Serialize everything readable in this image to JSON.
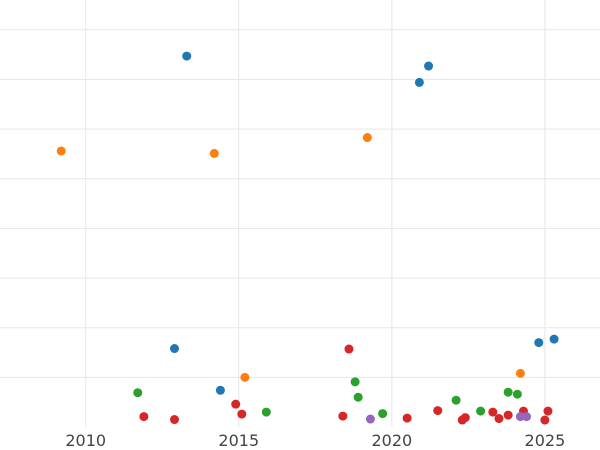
{
  "chart_data": {
    "type": "scatter",
    "title": "",
    "xlabel": "",
    "ylabel": "",
    "x_axis": "year",
    "xlim": [
      2007.2,
      2026.8
    ],
    "ylim": [
      0,
      8.6
    ],
    "x_ticks": [
      2010,
      2015,
      2020,
      2025
    ],
    "x_tick_labels": [
      "2010",
      "2015",
      "2020",
      "2025"
    ],
    "y_gridlines": [
      1,
      2,
      3,
      4,
      5,
      6,
      7,
      8
    ],
    "grid": true,
    "colors": {
      "blue": "#1f77b4",
      "orange": "#ff7f0e",
      "green": "#2ca02c",
      "red": "#d62728",
      "purple": "#9467bd"
    },
    "series": [
      {
        "color": "#1f77b4",
        "points": [
          {
            "x": 2013.3,
            "y": 7.47
          },
          {
            "x": 2021.2,
            "y": 7.27
          },
          {
            "x": 2020.9,
            "y": 6.94
          },
          {
            "x": 2012.9,
            "y": 1.58
          },
          {
            "x": 2024.8,
            "y": 1.7
          },
          {
            "x": 2025.3,
            "y": 1.77
          },
          {
            "x": 2014.4,
            "y": 0.74
          }
        ]
      },
      {
        "color": "#ff7f0e",
        "points": [
          {
            "x": 2009.2,
            "y": 5.56
          },
          {
            "x": 2014.2,
            "y": 5.51
          },
          {
            "x": 2019.2,
            "y": 5.83
          },
          {
            "x": 2015.2,
            "y": 1.0
          },
          {
            "x": 2024.2,
            "y": 1.08
          }
        ]
      },
      {
        "color": "#2ca02c",
        "points": [
          {
            "x": 2011.7,
            "y": 0.69
          },
          {
            "x": 2018.8,
            "y": 0.91
          },
          {
            "x": 2018.9,
            "y": 0.6
          },
          {
            "x": 2022.1,
            "y": 0.54
          },
          {
            "x": 2023.8,
            "y": 0.7
          },
          {
            "x": 2024.1,
            "y": 0.66
          },
          {
            "x": 2015.9,
            "y": 0.3
          },
          {
            "x": 2019.7,
            "y": 0.27
          },
          {
            "x": 2022.9,
            "y": 0.32
          }
        ]
      },
      {
        "color": "#d62728",
        "points": [
          {
            "x": 2018.6,
            "y": 1.57
          },
          {
            "x": 2014.9,
            "y": 0.46
          },
          {
            "x": 2015.1,
            "y": 0.26
          },
          {
            "x": 2011.9,
            "y": 0.21
          },
          {
            "x": 2012.9,
            "y": 0.15
          },
          {
            "x": 2018.4,
            "y": 0.22
          },
          {
            "x": 2020.5,
            "y": 0.18
          },
          {
            "x": 2021.5,
            "y": 0.33
          },
          {
            "x": 2022.3,
            "y": 0.14
          },
          {
            "x": 2022.4,
            "y": 0.19
          },
          {
            "x": 2023.3,
            "y": 0.3
          },
          {
            "x": 2023.5,
            "y": 0.17
          },
          {
            "x": 2023.8,
            "y": 0.24
          },
          {
            "x": 2024.3,
            "y": 0.32
          },
          {
            "x": 2025.0,
            "y": 0.14
          },
          {
            "x": 2025.1,
            "y": 0.32
          }
        ]
      },
      {
        "color": "#9467bd",
        "points": [
          {
            "x": 2019.3,
            "y": 0.16
          },
          {
            "x": 2024.2,
            "y": 0.21
          },
          {
            "x": 2024.4,
            "y": 0.21
          }
        ]
      }
    ]
  }
}
